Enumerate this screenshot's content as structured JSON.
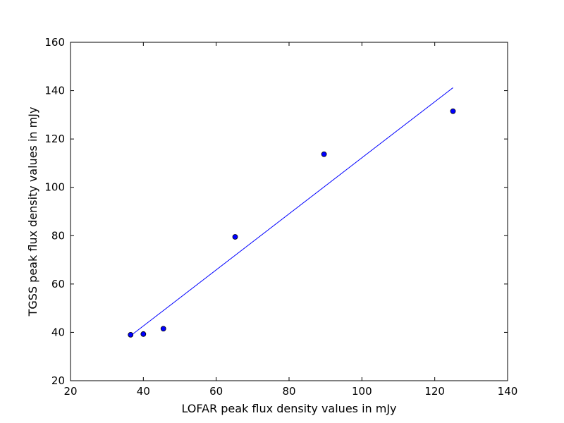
{
  "chart_data": {
    "type": "scatter",
    "title": "",
    "xlabel": "LOFAR peak flux density values in mJy",
    "ylabel": "TGSS peak flux density values in mJy",
    "xlim": [
      20,
      140
    ],
    "ylim": [
      20,
      160
    ],
    "xticks": [
      20,
      40,
      60,
      80,
      100,
      120,
      140
    ],
    "yticks": [
      20,
      40,
      60,
      80,
      100,
      120,
      140,
      160
    ],
    "grid": false,
    "legend": "none",
    "colors": {
      "point_fill": "#0000ff",
      "point_edge": "#000000",
      "line": "#0000ff"
    },
    "series": [
      {
        "kind": "scatter",
        "x": [
          36.5,
          40.0,
          45.5,
          65.2,
          89.6,
          125.0
        ],
        "y": [
          39.0,
          39.3,
          41.5,
          79.5,
          113.7,
          131.5
        ]
      },
      {
        "kind": "line",
        "x": [
          36.5,
          125.0
        ],
        "y": [
          38.6,
          141.2
        ]
      }
    ]
  }
}
